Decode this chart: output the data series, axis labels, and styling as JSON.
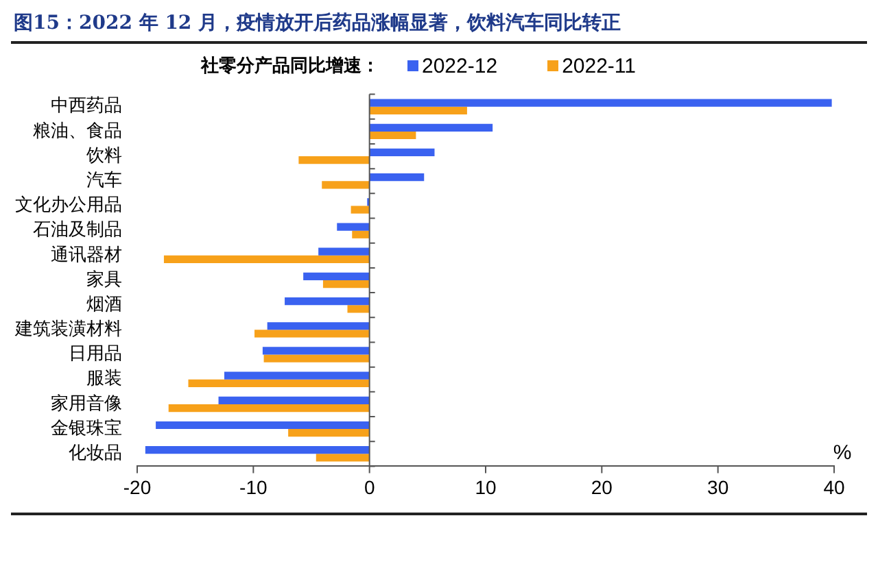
{
  "chart_data": {
    "type": "bar",
    "orientation": "horizontal",
    "title": "图15：2022 年 12 月，疫情放开后药品涨幅显著，饮料汽车同比转正",
    "legend_title": "社零分产品同比增速：",
    "xlabel": "%",
    "categories": [
      "中西药品",
      "粮油、食品",
      "饮料",
      "汽车",
      "文化办公用品",
      "石油及制品",
      "通讯器材",
      "家具",
      "烟酒",
      "建筑装潢材料",
      "日用品",
      "服装",
      "家用音像",
      "金银珠宝",
      "化妆品"
    ],
    "series": [
      {
        "name": "2022-12",
        "color": "#3a62f0",
        "values": [
          39.8,
          10.6,
          5.6,
          4.7,
          -0.2,
          -2.8,
          -4.4,
          -5.7,
          -7.3,
          -8.8,
          -9.2,
          -12.5,
          -13.0,
          -18.4,
          -19.3
        ]
      },
      {
        "name": "2022-11",
        "color": "#f7a11a",
        "values": [
          8.4,
          4.0,
          -6.1,
          -4.1,
          -1.6,
          -1.5,
          -17.7,
          -4.0,
          -1.9,
          -9.9,
          -9.1,
          -15.6,
          -17.3,
          -7.0,
          -4.6
        ]
      }
    ],
    "xlim": [
      -20,
      40
    ],
    "xticks": [
      -20,
      -10,
      0,
      10,
      20,
      30,
      40
    ],
    "legend": "top"
  }
}
